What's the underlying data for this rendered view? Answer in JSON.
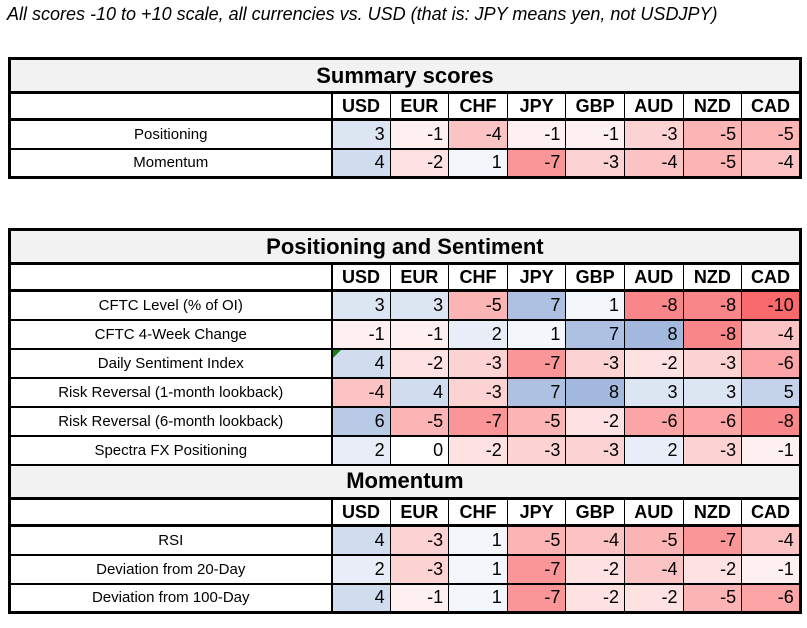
{
  "page_title": "All scores -10 to +10 scale, all currencies vs. USD (that is: JPY means yen, not USDJPY)",
  "chart_data": {
    "type": "heatmap",
    "title": "All scores -10 to +10 scale, all currencies vs. USD (that is: JPY means yen, not USDJPY)",
    "columns": [
      "USD",
      "EUR",
      "CHF",
      "JPY",
      "GBP",
      "AUD",
      "NZD",
      "CAD"
    ],
    "value_range": [
      -10,
      10
    ],
    "color_scale": {
      "min_color": "#F8696B",
      "mid_color": "#FFFFFF",
      "max_color": "#8BA7D5",
      "min_value": -10,
      "mid_value": 0,
      "max_value": 10
    },
    "banner_background": "#F2F2F2",
    "flag_color": "#118511",
    "sections": [
      {
        "id": "summary",
        "title": "Summary scores",
        "rows": [
          {
            "label": "Positioning",
            "values": [
              3,
              -1,
              -4,
              -1,
              -1,
              -3,
              -5,
              -5
            ]
          },
          {
            "label": "Momentum",
            "values": [
              4,
              -2,
              1,
              -7,
              -3,
              -4,
              -5,
              -4
            ]
          }
        ]
      },
      {
        "id": "positioning-sentiment",
        "title": "Positioning and Sentiment",
        "rows": [
          {
            "label": "CFTC Level (% of OI)",
            "values": [
              3,
              3,
              -5,
              7,
              1,
              -8,
              -8,
              -10
            ]
          },
          {
            "label": "CFTC 4-Week Change",
            "values": [
              -1,
              -1,
              2,
              1,
              7,
              8,
              -8,
              -4
            ]
          },
          {
            "label": "Daily Sentiment Index",
            "values": [
              4,
              -2,
              -3,
              -7,
              -3,
              -2,
              -3,
              -6
            ],
            "flag_col": 0
          },
          {
            "label": "Risk Reversal (1-month lookback)",
            "values": [
              -4,
              4,
              -3,
              7,
              8,
              3,
              3,
              5
            ]
          },
          {
            "label": "Risk Reversal (6-month lookback)",
            "values": [
              6,
              -5,
              -7,
              -5,
              -2,
              -6,
              -6,
              -8
            ]
          },
          {
            "label": "Spectra FX Positioning",
            "values": [
              2,
              0,
              -2,
              -3,
              -3,
              2,
              -3,
              -1
            ]
          }
        ]
      },
      {
        "id": "momentum",
        "title": "Momentum",
        "rows": [
          {
            "label": "RSI",
            "values": [
              4,
              -3,
              1,
              -5,
              -4,
              -5,
              -7,
              -4
            ]
          },
          {
            "label": "Deviation from 20-Day",
            "values": [
              2,
              -3,
              1,
              -7,
              -2,
              -4,
              -2,
              -1
            ]
          },
          {
            "label": "Deviation from 100-Day",
            "values": [
              4,
              -1,
              1,
              -7,
              -2,
              -2,
              -5,
              -6
            ]
          }
        ]
      }
    ]
  }
}
